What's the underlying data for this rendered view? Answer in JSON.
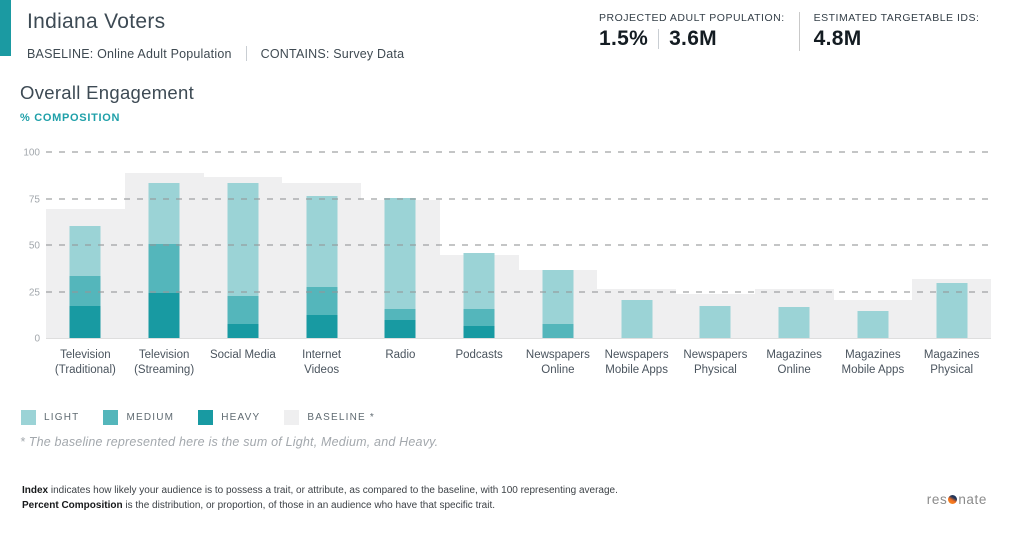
{
  "header": {
    "title": "Indiana Voters",
    "baseline": "BASELINE: Online Adult Population",
    "contains": "CONTAINS: Survey Data",
    "stats": [
      {
        "label": "PROJECTED ADULT POPULATION:",
        "values": [
          "1.5%",
          "3.6M"
        ]
      },
      {
        "label": "ESTIMATED TARGETABLE IDS:",
        "values": [
          "4.8M"
        ]
      }
    ],
    "accent_color": "#1b9aa2"
  },
  "chart": {
    "title": "Overall Engagement",
    "subtitle": "% COMPOSITION"
  },
  "chart_data": {
    "type": "bar",
    "stacked": true,
    "title": "Overall Engagement",
    "ylabel": "% COMPOSITION",
    "ylim": [
      0,
      100
    ],
    "yticks": [
      0,
      25,
      50,
      75,
      100
    ],
    "grid": true,
    "legend_position": "bottom",
    "categories": [
      "Television\n(Traditional)",
      "Television\n(Streaming)",
      "Social Media",
      "Internet\nVideos",
      "Radio",
      "Podcasts",
      "Newspapers\nOnline",
      "Newspapers\nMobile Apps",
      "Newspapers\nPhysical",
      "Magazines\nOnline",
      "Magazines\nMobile Apps",
      "Magazines\nPhysical"
    ],
    "series": [
      {
        "name": "LIGHT",
        "color": "#9bd3d6",
        "values": [
          27,
          33,
          61,
          49,
          60,
          30,
          29,
          21,
          18,
          17,
          15,
          30
        ]
      },
      {
        "name": "MEDIUM",
        "color": "#54b6bb",
        "values": [
          16,
          26,
          15,
          15,
          6,
          9,
          8,
          0,
          0,
          0,
          0,
          0
        ]
      },
      {
        "name": "HEAVY",
        "color": "#189aa2",
        "values": [
          18,
          25,
          8,
          13,
          10,
          7,
          0,
          0,
          0,
          0,
          0,
          0
        ]
      },
      {
        "name": "BASELINE *",
        "color": "#efeff0",
        "type": "background",
        "values": [
          70,
          89,
          87,
          84,
          75,
          45,
          37,
          27,
          24,
          27,
          21,
          32
        ]
      }
    ]
  },
  "legend": {
    "items": [
      {
        "label": "LIGHT",
        "color": "#9bd3d6"
      },
      {
        "label": "MEDIUM",
        "color": "#54b6bb"
      },
      {
        "label": "HEAVY",
        "color": "#189aa2"
      },
      {
        "label": "BASELINE *",
        "color": "#efeff0"
      }
    ]
  },
  "footnote": "* The baseline represented here is the sum of Light, Medium, and Heavy.",
  "footer": {
    "definitions": [
      {
        "term": "Index",
        "text": " indicates how likely your audience is to possess a trait, or attribute, as compared to the baseline, with 100 representing average."
      },
      {
        "term": "Percent Composition",
        "text": " is the distribution, or proportion, of those in an audience who have that specific trait."
      }
    ],
    "logo": {
      "pre": "res",
      "post": "nate"
    }
  }
}
